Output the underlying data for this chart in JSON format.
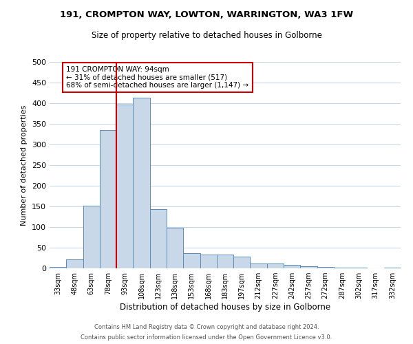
{
  "title1": "191, CROMPTON WAY, LOWTON, WARRINGTON, WA3 1FW",
  "title2": "Size of property relative to detached houses in Golborne",
  "xlabel": "Distribution of detached houses by size in Golborne",
  "ylabel": "Number of detached properties",
  "categories": [
    "33sqm",
    "48sqm",
    "63sqm",
    "78sqm",
    "93sqm",
    "108sqm",
    "123sqm",
    "138sqm",
    "153sqm",
    "168sqm",
    "183sqm",
    "197sqm",
    "212sqm",
    "227sqm",
    "242sqm",
    "257sqm",
    "272sqm",
    "287sqm",
    "302sqm",
    "317sqm",
    "332sqm"
  ],
  "values": [
    3,
    22,
    152,
    335,
    397,
    413,
    143,
    99,
    37,
    34,
    34,
    28,
    11,
    11,
    8,
    5,
    3,
    1,
    1,
    0,
    1
  ],
  "bar_color": "#c8d8e8",
  "bar_edge_color": "#5b8db8",
  "vline_x": 4,
  "vline_color": "#cc0000",
  "annotation_text": "191 CROMPTON WAY: 94sqm\n← 31% of detached houses are smaller (517)\n68% of semi-detached houses are larger (1,147) →",
  "annotation_box_color": "#ffffff",
  "annotation_box_edge_color": "#cc0000",
  "footer1": "Contains HM Land Registry data © Crown copyright and database right 2024.",
  "footer2": "Contains public sector information licensed under the Open Government Licence v3.0.",
  "ylim": [
    0,
    500
  ],
  "yticks": [
    0,
    50,
    100,
    150,
    200,
    250,
    300,
    350,
    400,
    450,
    500
  ],
  "background_color": "#ffffff",
  "grid_color": "#c8d8e8"
}
